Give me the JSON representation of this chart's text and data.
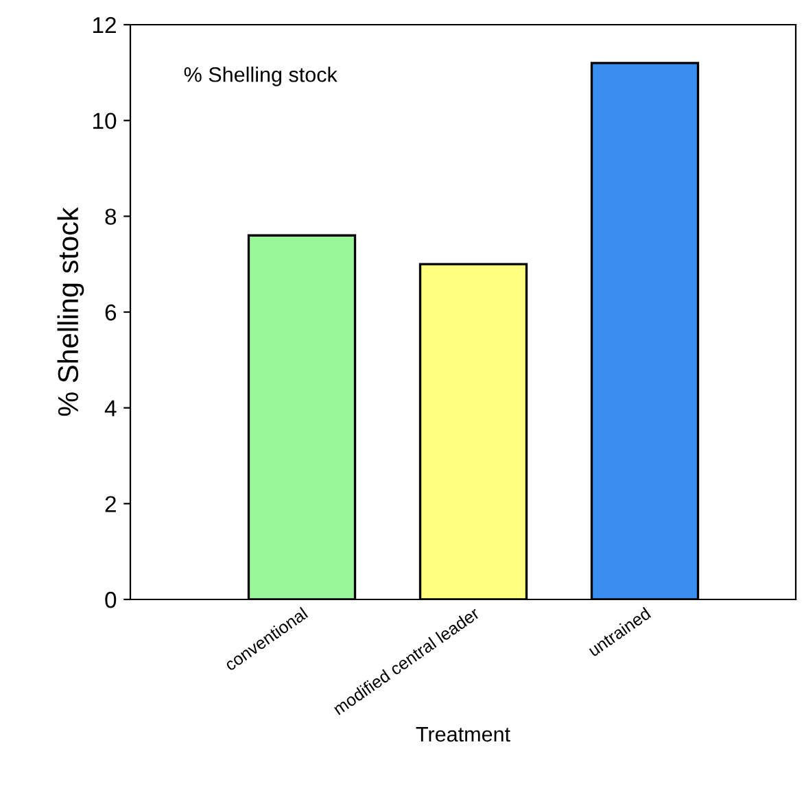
{
  "chart_data": {
    "type": "bar",
    "ylabel": "% Shelling stock",
    "xlabel": "Treatment",
    "annotations": [
      "% Shelling stock"
    ],
    "categories": [
      "conventional",
      "modified central leader",
      "untrained"
    ],
    "values": [
      7.6,
      7.0,
      11.2
    ],
    "colors": [
      "#99f799",
      "#ffff80",
      "#3a8ef0"
    ],
    "ylim": [
      0,
      12
    ],
    "yticks": [
      0,
      2,
      4,
      6,
      8,
      10,
      12
    ],
    "grid": false,
    "legend": false
  }
}
